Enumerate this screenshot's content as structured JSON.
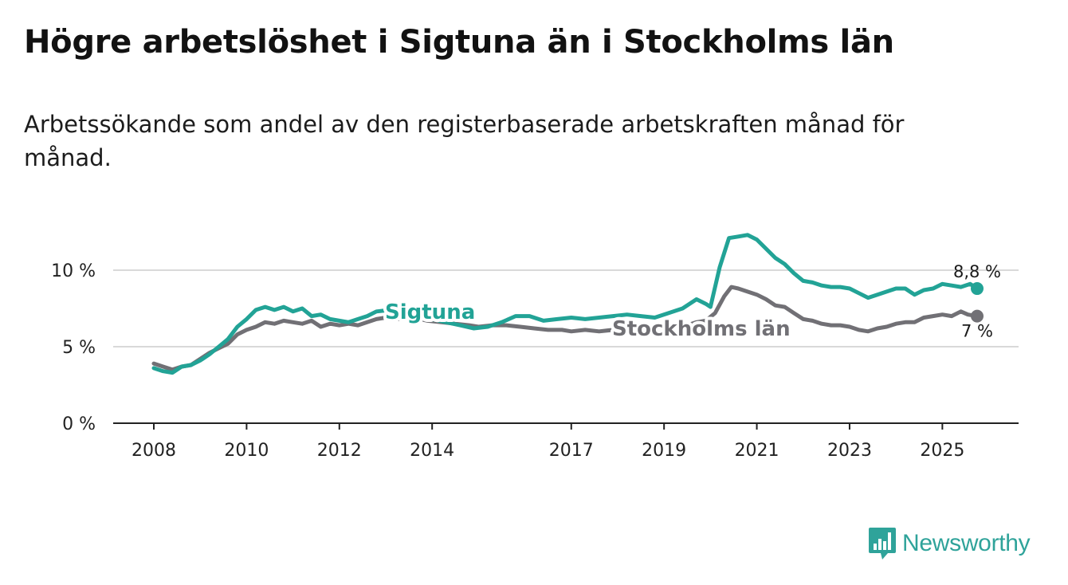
{
  "title": "Högre arbetslöshet i Sigtuna än i Stockholms län",
  "subtitle": "Arbetssökande som andel av den registerbaserade arbetskraften månad för månad.",
  "brand": {
    "name": "Newsworthy",
    "icon": "newsworthy-logo-icon",
    "color": "#2fa39a"
  },
  "chart_data": {
    "type": "line",
    "x_range": [
      2008,
      2025.75
    ],
    "y_range": [
      0,
      12.5
    ],
    "y_ticks": [
      {
        "value": 0,
        "label": "0 %"
      },
      {
        "value": 5,
        "label": "5 %"
      },
      {
        "value": 10,
        "label": "10 %"
      }
    ],
    "x_ticks": [
      {
        "value": 2008,
        "label": "2008"
      },
      {
        "value": 2010,
        "label": "2010"
      },
      {
        "value": 2012,
        "label": "2012"
      },
      {
        "value": 2014,
        "label": "2014"
      },
      {
        "value": 2017,
        "label": "2017"
      },
      {
        "value": 2019,
        "label": "2019"
      },
      {
        "value": 2021,
        "label": "2021"
      },
      {
        "value": 2023,
        "label": "2023"
      },
      {
        "value": 2025,
        "label": "2025"
      }
    ],
    "grid": true,
    "series": [
      {
        "name": "Stockholms län",
        "color": "#717075",
        "end_label": "7 %",
        "points": [
          [
            2008.0,
            3.9
          ],
          [
            2008.2,
            3.7
          ],
          [
            2008.4,
            3.5
          ],
          [
            2008.6,
            3.7
          ],
          [
            2008.8,
            3.8
          ],
          [
            2009.0,
            4.2
          ],
          [
            2009.2,
            4.6
          ],
          [
            2009.4,
            4.9
          ],
          [
            2009.6,
            5.2
          ],
          [
            2009.8,
            5.8
          ],
          [
            2010.0,
            6.1
          ],
          [
            2010.2,
            6.3
          ],
          [
            2010.4,
            6.6
          ],
          [
            2010.6,
            6.5
          ],
          [
            2010.8,
            6.7
          ],
          [
            2011.0,
            6.6
          ],
          [
            2011.2,
            6.5
          ],
          [
            2011.4,
            6.7
          ],
          [
            2011.6,
            6.3
          ],
          [
            2011.8,
            6.5
          ],
          [
            2012.0,
            6.4
          ],
          [
            2012.2,
            6.5
          ],
          [
            2012.4,
            6.4
          ],
          [
            2012.6,
            6.6
          ],
          [
            2012.8,
            6.8
          ],
          [
            2013.0,
            6.9
          ],
          [
            2013.3,
            6.8
          ],
          [
            2013.6,
            6.9
          ],
          [
            2013.9,
            6.7
          ],
          [
            2014.2,
            6.6
          ],
          [
            2014.5,
            6.5
          ],
          [
            2014.8,
            6.4
          ],
          [
            2015.0,
            6.3
          ],
          [
            2015.3,
            6.4
          ],
          [
            2015.6,
            6.4
          ],
          [
            2015.9,
            6.3
          ],
          [
            2016.2,
            6.2
          ],
          [
            2016.5,
            6.1
          ],
          [
            2016.8,
            6.1
          ],
          [
            2017.0,
            6.0
          ],
          [
            2017.3,
            6.1
          ],
          [
            2017.6,
            6.0
          ],
          [
            2017.9,
            6.1
          ],
          [
            2018.2,
            6.0
          ],
          [
            2018.5,
            6.0
          ],
          [
            2018.8,
            6.0
          ],
          [
            2019.1,
            6.1
          ],
          [
            2019.4,
            6.3
          ],
          [
            2019.7,
            6.6
          ],
          [
            2019.9,
            6.7
          ],
          [
            2020.1,
            7.2
          ],
          [
            2020.3,
            8.3
          ],
          [
            2020.45,
            8.9
          ],
          [
            2020.6,
            8.8
          ],
          [
            2020.8,
            8.6
          ],
          [
            2021.0,
            8.4
          ],
          [
            2021.2,
            8.1
          ],
          [
            2021.4,
            7.7
          ],
          [
            2021.6,
            7.6
          ],
          [
            2021.8,
            7.2
          ],
          [
            2022.0,
            6.8
          ],
          [
            2022.2,
            6.7
          ],
          [
            2022.4,
            6.5
          ],
          [
            2022.6,
            6.4
          ],
          [
            2022.8,
            6.4
          ],
          [
            2023.0,
            6.3
          ],
          [
            2023.2,
            6.1
          ],
          [
            2023.4,
            6.0
          ],
          [
            2023.6,
            6.2
          ],
          [
            2023.8,
            6.3
          ],
          [
            2024.0,
            6.5
          ],
          [
            2024.2,
            6.6
          ],
          [
            2024.4,
            6.6
          ],
          [
            2024.6,
            6.9
          ],
          [
            2024.8,
            7.0
          ],
          [
            2025.0,
            7.1
          ],
          [
            2025.2,
            7.0
          ],
          [
            2025.4,
            7.3
          ],
          [
            2025.55,
            7.1
          ],
          [
            2025.75,
            7.0
          ]
        ]
      },
      {
        "name": "Sigtuna",
        "color": "#22a396",
        "end_label": "8,8 %",
        "points": [
          [
            2008.0,
            3.6
          ],
          [
            2008.2,
            3.4
          ],
          [
            2008.4,
            3.3
          ],
          [
            2008.6,
            3.7
          ],
          [
            2008.8,
            3.8
          ],
          [
            2009.0,
            4.1
          ],
          [
            2009.2,
            4.5
          ],
          [
            2009.4,
            5.0
          ],
          [
            2009.6,
            5.5
          ],
          [
            2009.8,
            6.3
          ],
          [
            2010.0,
            6.8
          ],
          [
            2010.2,
            7.4
          ],
          [
            2010.4,
            7.6
          ],
          [
            2010.6,
            7.4
          ],
          [
            2010.8,
            7.6
          ],
          [
            2011.0,
            7.3
          ],
          [
            2011.2,
            7.5
          ],
          [
            2011.4,
            7.0
          ],
          [
            2011.6,
            7.1
          ],
          [
            2011.8,
            6.8
          ],
          [
            2012.0,
            6.7
          ],
          [
            2012.2,
            6.6
          ],
          [
            2012.4,
            6.8
          ],
          [
            2012.6,
            7.0
          ],
          [
            2012.8,
            7.3
          ],
          [
            2013.1,
            7.4
          ],
          [
            2013.4,
            7.2
          ],
          [
            2013.7,
            7.0
          ],
          [
            2014.0,
            6.8
          ],
          [
            2014.3,
            6.6
          ],
          [
            2014.6,
            6.4
          ],
          [
            2014.9,
            6.2
          ],
          [
            2015.2,
            6.3
          ],
          [
            2015.5,
            6.6
          ],
          [
            2015.8,
            7.0
          ],
          [
            2016.1,
            7.0
          ],
          [
            2016.4,
            6.7
          ],
          [
            2016.7,
            6.8
          ],
          [
            2017.0,
            6.9
          ],
          [
            2017.3,
            6.8
          ],
          [
            2017.6,
            6.9
          ],
          [
            2017.9,
            7.0
          ],
          [
            2018.2,
            7.1
          ],
          [
            2018.5,
            7.0
          ],
          [
            2018.8,
            6.9
          ],
          [
            2019.1,
            7.2
          ],
          [
            2019.4,
            7.5
          ],
          [
            2019.7,
            8.1
          ],
          [
            2019.9,
            7.8
          ],
          [
            2020.0,
            7.6
          ],
          [
            2020.2,
            10.2
          ],
          [
            2020.4,
            12.1
          ],
          [
            2020.6,
            12.2
          ],
          [
            2020.8,
            12.3
          ],
          [
            2021.0,
            12.0
          ],
          [
            2021.2,
            11.4
          ],
          [
            2021.4,
            10.8
          ],
          [
            2021.6,
            10.4
          ],
          [
            2021.8,
            9.8
          ],
          [
            2022.0,
            9.3
          ],
          [
            2022.2,
            9.2
          ],
          [
            2022.4,
            9.0
          ],
          [
            2022.6,
            8.9
          ],
          [
            2022.8,
            8.9
          ],
          [
            2023.0,
            8.8
          ],
          [
            2023.2,
            8.5
          ],
          [
            2023.4,
            8.2
          ],
          [
            2023.6,
            8.4
          ],
          [
            2023.8,
            8.6
          ],
          [
            2024.0,
            8.8
          ],
          [
            2024.2,
            8.8
          ],
          [
            2024.4,
            8.4
          ],
          [
            2024.6,
            8.7
          ],
          [
            2024.8,
            8.8
          ],
          [
            2025.0,
            9.1
          ],
          [
            2025.2,
            9.0
          ],
          [
            2025.4,
            8.9
          ],
          [
            2025.6,
            9.1
          ],
          [
            2025.75,
            8.8
          ]
        ]
      }
    ]
  }
}
